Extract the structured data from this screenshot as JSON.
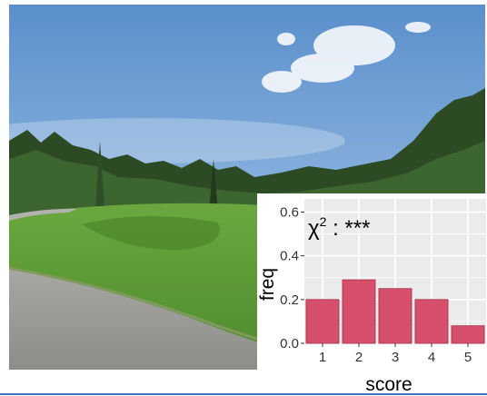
{
  "colors": {
    "bar_fill": "#d64f6b",
    "bar_stroke": "#b03a55",
    "panel_bg": "#ebebeb",
    "grid": "#ffffff",
    "sky": "#6f9fd2",
    "grass": "#5f9e3a",
    "path": "#9a9a96",
    "trees": "#2c4a24",
    "rule": "#4472c4"
  },
  "photo": {
    "icon": "landscape-photo"
  },
  "chart_data": {
    "type": "bar",
    "categories": [
      "1",
      "2",
      "3",
      "4",
      "5"
    ],
    "values": [
      0.2,
      0.29,
      0.25,
      0.2,
      0.08
    ],
    "xlabel": "score",
    "ylabel": "freq",
    "ylim": [
      0,
      0.66
    ],
    "yticks": [
      0.0,
      0.2,
      0.4,
      0.6
    ],
    "ytick_labels": [
      "0.0",
      "0.2",
      "0.4",
      "0.6"
    ],
    "grid": true,
    "annotation": {
      "base": "χ",
      "sup": "2",
      "rest": " : ***"
    }
  }
}
